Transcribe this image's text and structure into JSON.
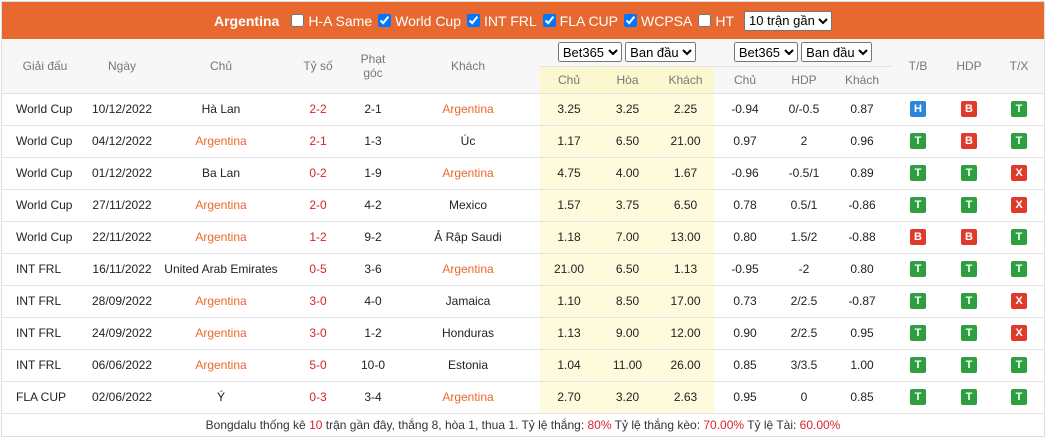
{
  "header": {
    "team": "Argentina",
    "filters": [
      {
        "label": "H-A Same",
        "checked": false
      },
      {
        "label": "World Cup",
        "checked": true
      },
      {
        "label": "INT FRL",
        "checked": true
      },
      {
        "label": "FLA CUP",
        "checked": true
      },
      {
        "label": "WCPSA",
        "checked": true
      },
      {
        "label": "HT",
        "checked": false
      }
    ],
    "select": "10 trận gần"
  },
  "columns": {
    "league": "Giải đấu",
    "date": "Ngày",
    "home": "Chủ",
    "score": "Tỷ số",
    "corners": "Phạt góc",
    "away": "Khách",
    "tb": "T/B",
    "hdp": "HDP",
    "tx": "T/X",
    "odds1": {
      "bookmaker": "Bet365",
      "period": "Ban đầu",
      "sub": [
        "Chủ",
        "Hòa",
        "Khách"
      ]
    },
    "odds2": {
      "bookmaker": "Bet365",
      "period": "Ban đầu",
      "sub": [
        "Chủ",
        "HDP",
        "Khách"
      ]
    }
  },
  "rows": [
    {
      "league": "World Cup",
      "date": "10/12/2022",
      "home": "Hà Lan",
      "score": "2-2",
      "corners": "2-1",
      "away": "Argentina",
      "odds1": [
        "3.25",
        "3.25",
        "2.25"
      ],
      "odds2": [
        "-0.94",
        "0/-0.5",
        "0.87"
      ],
      "tb": "H",
      "hdp": "B",
      "tx": "T"
    },
    {
      "league": "World Cup",
      "date": "04/12/2022",
      "home": "Argentina",
      "score": "2-1",
      "corners": "1-3",
      "away": "Úc",
      "odds1": [
        "1.17",
        "6.50",
        "21.00"
      ],
      "odds2": [
        "0.97",
        "2",
        "0.96"
      ],
      "tb": "T",
      "hdp": "B",
      "tx": "T"
    },
    {
      "league": "World Cup",
      "date": "01/12/2022",
      "home": "Ba Lan",
      "score": "0-2",
      "corners": "1-9",
      "away": "Argentina",
      "odds1": [
        "4.75",
        "4.00",
        "1.67"
      ],
      "odds2": [
        "-0.96",
        "-0.5/1",
        "0.89"
      ],
      "tb": "T",
      "hdp": "T",
      "tx": "X"
    },
    {
      "league": "World Cup",
      "date": "27/11/2022",
      "home": "Argentina",
      "score": "2-0",
      "corners": "4-2",
      "away": "Mexico",
      "odds1": [
        "1.57",
        "3.75",
        "6.50"
      ],
      "odds2": [
        "0.78",
        "0.5/1",
        "-0.86"
      ],
      "tb": "T",
      "hdp": "T",
      "tx": "X"
    },
    {
      "league": "World Cup",
      "date": "22/11/2022",
      "home": "Argentina",
      "score": "1-2",
      "corners": "9-2",
      "away": "Ả Rập Saudi",
      "odds1": [
        "1.18",
        "7.00",
        "13.00"
      ],
      "odds2": [
        "0.80",
        "1.5/2",
        "-0.88"
      ],
      "tb": "B",
      "hdp": "B",
      "tx": "T"
    },
    {
      "league": "INT FRL",
      "date": "16/11/2022",
      "home": "United Arab Emirates",
      "score": "0-5",
      "corners": "3-6",
      "away": "Argentina",
      "odds1": [
        "21.00",
        "6.50",
        "1.13"
      ],
      "odds2": [
        "-0.95",
        "-2",
        "0.80"
      ],
      "tb": "T",
      "hdp": "T",
      "tx": "T"
    },
    {
      "league": "INT FRL",
      "date": "28/09/2022",
      "home": "Argentina",
      "score": "3-0",
      "corners": "4-0",
      "away": "Jamaica",
      "odds1": [
        "1.10",
        "8.50",
        "17.00"
      ],
      "odds2": [
        "0.73",
        "2/2.5",
        "-0.87"
      ],
      "tb": "T",
      "hdp": "T",
      "tx": "X"
    },
    {
      "league": "INT FRL",
      "date": "24/09/2022",
      "home": "Argentina",
      "score": "3-0",
      "corners": "1-2",
      "away": "Honduras",
      "odds1": [
        "1.13",
        "9.00",
        "12.00"
      ],
      "odds2": [
        "0.90",
        "2/2.5",
        "0.95"
      ],
      "tb": "T",
      "hdp": "T",
      "tx": "X"
    },
    {
      "league": "INT FRL",
      "date": "06/06/2022",
      "home": "Argentina",
      "score": "5-0",
      "corners": "10-0",
      "away": "Estonia",
      "odds1": [
        "1.04",
        "11.00",
        "26.00"
      ],
      "odds2": [
        "0.85",
        "3/3.5",
        "1.00"
      ],
      "tb": "T",
      "hdp": "T",
      "tx": "T"
    },
    {
      "league": "FLA CUP",
      "date": "02/06/2022",
      "home": "Ý",
      "score": "0-3",
      "corners": "3-4",
      "away": "Argentina",
      "odds1": [
        "2.70",
        "3.20",
        "2.63"
      ],
      "odds2": [
        "0.95",
        "0",
        "0.85"
      ],
      "tb": "T",
      "hdp": "T",
      "tx": "T"
    }
  ],
  "footer": [
    {
      "text": "Bongdalu thống kê ",
      "highlight": false
    },
    {
      "text": "10",
      "highlight": true
    },
    {
      "text": " trận gần đây, thắng 8, hòa 1, thua 1. Tỷ lệ thắng: ",
      "highlight": false
    },
    {
      "text": "80%",
      "highlight": true
    },
    {
      "text": " Tỷ lệ thắng kèo: ",
      "highlight": false
    },
    {
      "text": "70.00%",
      "highlight": true
    },
    {
      "text": " Tỷ lệ Tài: ",
      "highlight": false
    },
    {
      "text": "60.00%",
      "highlight": true
    }
  ]
}
